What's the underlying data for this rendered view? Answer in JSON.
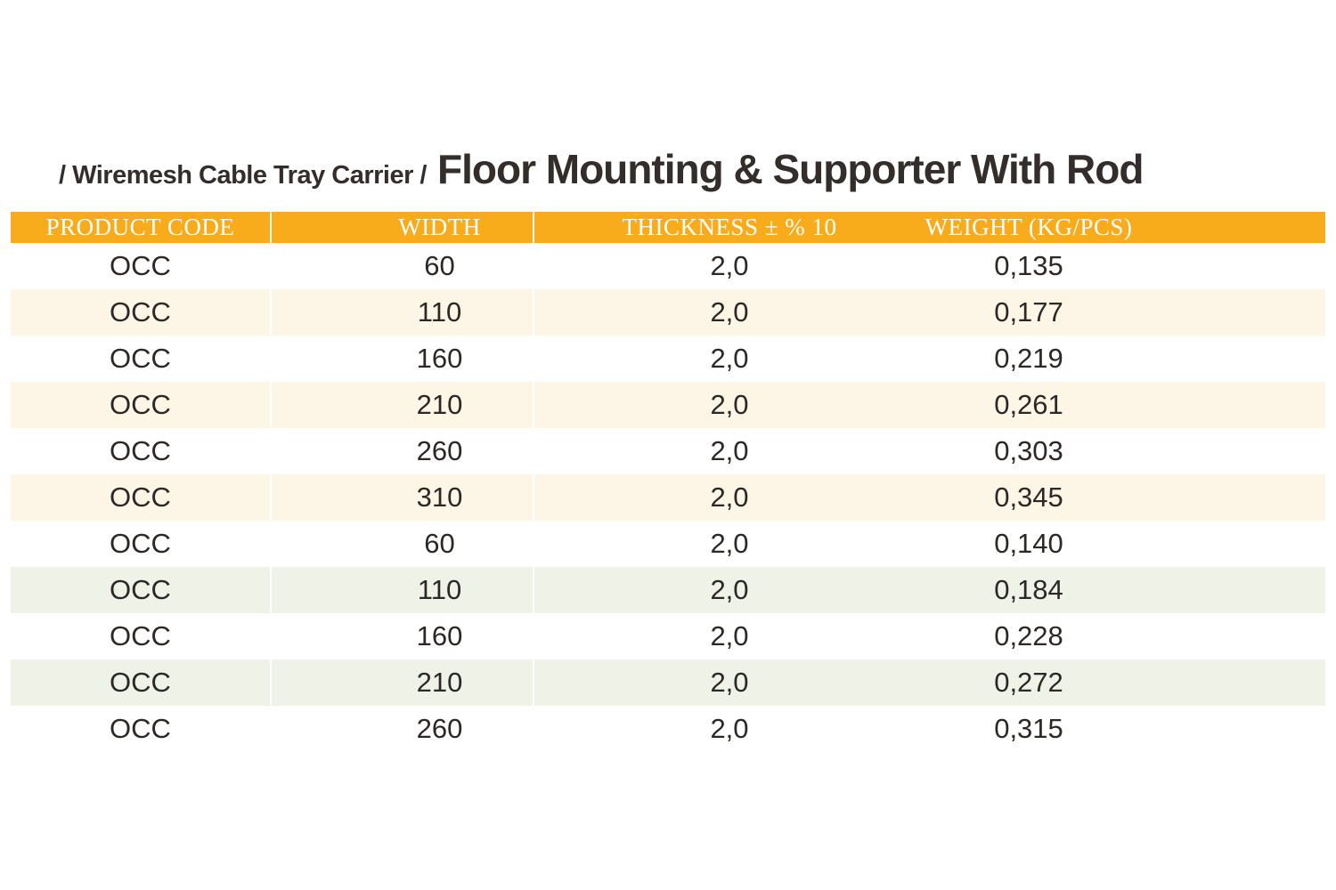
{
  "breadcrumb": {
    "text": "/ Wiremesh Cable Tray Carrier /"
  },
  "title": "Floor Mounting & Supporter With Rod",
  "table": {
    "colors": {
      "header_bg": "#F8AC1C",
      "stripe_cream": "#FDF5E6",
      "stripe_green": "#EFF2E7",
      "row_white": "#FFFFFF",
      "header_text": "#FFFFFF",
      "body_text": "#2B2826"
    },
    "columns": [
      "PRODUCT CODE",
      "WIDTH",
      "THICKNESS ± % 10",
      "WEIGHT (KG/PCS)"
    ],
    "rows": [
      {
        "product_code": "OCC",
        "width": "60",
        "thickness": "2,0",
        "weight": "0,135"
      },
      {
        "product_code": "OCC",
        "width": "110",
        "thickness": "2,0",
        "weight": "0,177"
      },
      {
        "product_code": "OCC",
        "width": "160",
        "thickness": "2,0",
        "weight": "0,219"
      },
      {
        "product_code": "OCC",
        "width": "210",
        "thickness": "2,0",
        "weight": "0,261"
      },
      {
        "product_code": "OCC",
        "width": "260",
        "thickness": "2,0",
        "weight": "0,303"
      },
      {
        "product_code": "OCC",
        "width": "310",
        "thickness": "2,0",
        "weight": "0,345"
      },
      {
        "product_code": "OCC",
        "width": "60",
        "thickness": "2,0",
        "weight": "0,140"
      },
      {
        "product_code": "OCC",
        "width": "110",
        "thickness": "2,0",
        "weight": "0,184"
      },
      {
        "product_code": "OCC",
        "width": "160",
        "thickness": "2,0",
        "weight": "0,228"
      },
      {
        "product_code": "OCC",
        "width": "210",
        "thickness": "2,0",
        "weight": "0,272"
      },
      {
        "product_code": "OCC",
        "width": "260",
        "thickness": "2,0",
        "weight": "0,315"
      }
    ]
  }
}
